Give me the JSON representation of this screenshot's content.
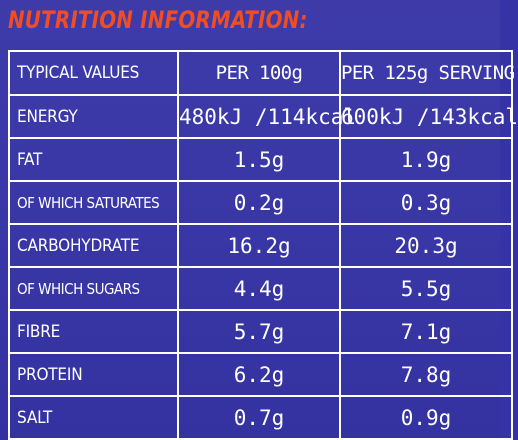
{
  "section_title": "NUTRITION INFORMATION:",
  "table": {
    "headers": [
      "TYPICAL VALUES",
      "PER 100g",
      "PER 125g SERVING"
    ],
    "rows": [
      {
        "label": "ENERGY",
        "per_100g": "480kJ /114kcal",
        "per_serving": "600kJ /143kcal"
      },
      {
        "label": "FAT",
        "per_100g": "1.5g",
        "per_serving": "1.9g"
      },
      {
        "label": "OF WHICH SATURATES",
        "per_100g": "0.2g",
        "per_serving": "0.3g"
      },
      {
        "label": "CARBOHYDRATE",
        "per_100g": "16.2g",
        "per_serving": "20.3g"
      },
      {
        "label": "OF WHICH SUGARS",
        "per_100g": "4.4g",
        "per_serving": "5.5g"
      },
      {
        "label": "FIBRE",
        "per_100g": "5.7g",
        "per_serving": "7.1g"
      },
      {
        "label": "PROTEIN",
        "per_100g": "6.2g",
        "per_serving": "7.8g"
      },
      {
        "label": "SALT",
        "per_100g": "0.7g",
        "per_serving": "0.9g"
      }
    ]
  },
  "colors": {
    "background": "#3633a6",
    "title": "#f04d22",
    "text": "#ffffff",
    "border": "#ffffff"
  }
}
